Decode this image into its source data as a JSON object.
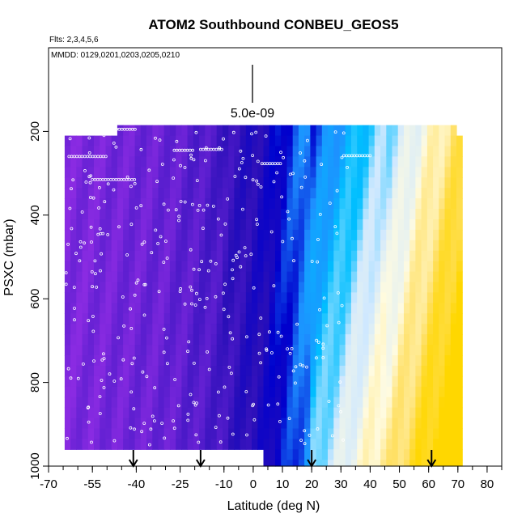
{
  "chart_data": {
    "type": "heatmap",
    "title": "ATOM2 Southbound CONBEU_GEOS5",
    "flights_note": "Flts: 2,3,4,5,6",
    "dates_note": "MMDD: 0129,0201,0203,0205,0210",
    "xlabel": "Latitude (deg N)",
    "ylabel": "PSXC (mbar)",
    "xlim": [
      -70,
      85
    ],
    "ylim": [
      1000,
      0
    ],
    "x_ticks": [
      -70,
      -55,
      -40,
      -25,
      -10,
      0,
      10,
      20,
      30,
      40,
      50,
      60,
      70,
      80
    ],
    "y_ticks": [
      200,
      400,
      600,
      800,
      1000
    ],
    "scale_bar_label": "5.0e-09",
    "date_arrow_latitudes": [
      -41,
      -18,
      20,
      61
    ],
    "color_scale": [
      "#8a2be2",
      "#5a1ecf",
      "#2a0fb8",
      "#0000cd",
      "#1e90ff",
      "#00bfff",
      "#cfe8ff",
      "#fffbe0",
      "#ffe066",
      "#ffd700"
    ],
    "grid": false,
    "legend": "none"
  }
}
